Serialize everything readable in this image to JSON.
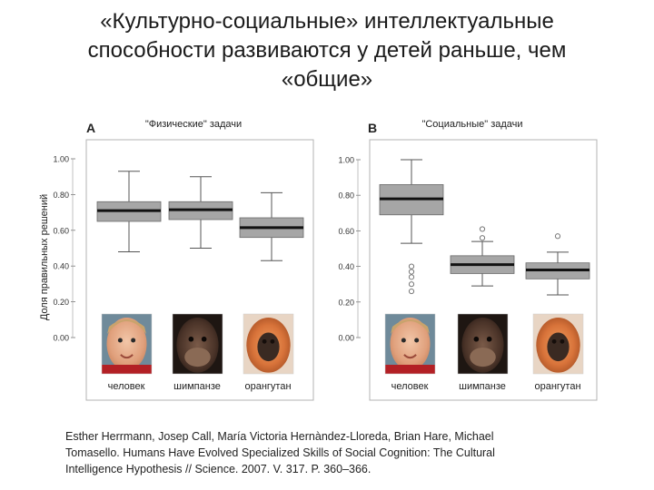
{
  "slide": {
    "title_lines": [
      "«Культурно-социальные» интеллектуальные",
      "способности развиваются у детей раньше, чем",
      "«общие»"
    ]
  },
  "chart_data": [
    {
      "type": "box",
      "panel_letter": "A",
      "title": "\"Физические\" задачи",
      "ylabel": "Доля правильных решений",
      "ylim": [
        0.0,
        1.0
      ],
      "yticks": [
        "0.00",
        "0.20",
        "0.40",
        "0.60",
        "0.80",
        "1.00"
      ],
      "categories": [
        "человек",
        "шимпанзе",
        "орангутан"
      ],
      "boxes": [
        {
          "min": 0.48,
          "q1": 0.65,
          "median": 0.71,
          "q3": 0.76,
          "max": 0.93,
          "outliers": []
        },
        {
          "min": 0.5,
          "q1": 0.66,
          "median": 0.715,
          "q3": 0.76,
          "max": 0.9,
          "outliers": []
        },
        {
          "min": 0.43,
          "q1": 0.56,
          "median": 0.615,
          "q3": 0.67,
          "max": 0.81,
          "outliers": []
        }
      ]
    },
    {
      "type": "box",
      "panel_letter": "B",
      "title": "\"Социальные\" задачи",
      "ylabel": "",
      "ylim": [
        0.0,
        1.0
      ],
      "yticks": [
        "0.00",
        "0.20",
        "0.40",
        "0.60",
        "0.80",
        "1.00"
      ],
      "categories": [
        "человек",
        "шимпанзе",
        "орангутан"
      ],
      "boxes": [
        {
          "min": 0.53,
          "q1": 0.69,
          "median": 0.78,
          "q3": 0.86,
          "max": 1.0,
          "outliers": [
            0.26,
            0.3,
            0.34,
            0.37,
            0.4
          ]
        },
        {
          "min": 0.29,
          "q1": 0.36,
          "median": 0.41,
          "q3": 0.46,
          "max": 0.54,
          "outliers": [
            0.56,
            0.61
          ]
        },
        {
          "min": 0.24,
          "q1": 0.33,
          "median": 0.38,
          "q3": 0.42,
          "max": 0.48,
          "outliers": [
            0.57
          ]
        }
      ]
    }
  ],
  "photos": [
    "child-face-photo",
    "chimpanzee-face-photo",
    "orangutan-face-photo"
  ],
  "colors": {
    "box_fill": "#a6a6a6",
    "median": "#111111",
    "whisker": "#555555",
    "frame": "#b3b3b3",
    "outlier": "#777777"
  },
  "citation_lines": [
    "Esther Herrmann, Josep Call, María Victoria Hernàndez-Lloreda, Brian Hare, Michael",
    "Tomasello. Humans Have Evolved Specialized Skills of Social Cognition: The Cultural",
    "Intelligence Hypothesis // Science. 2007. V. 317. P. 360–366."
  ]
}
